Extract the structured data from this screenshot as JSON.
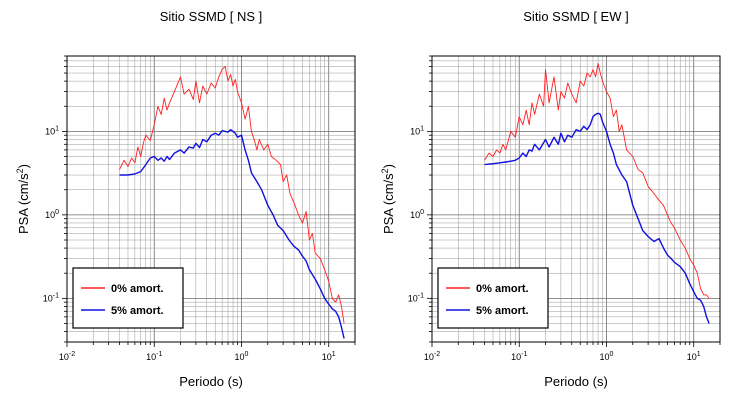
{
  "chart_data": [
    {
      "type": "line",
      "title": "Sitio SSMD [ NS ]",
      "xlabel": "Periodo (s)",
      "ylabel_main": "PSA (cm/s",
      "ylabel_sup": "2",
      "ylabel_close": ")",
      "xscale": "log",
      "yscale": "log",
      "xlim": [
        0.01,
        20
      ],
      "ylim": [
        0.03,
        80
      ],
      "grid": true,
      "legend_position": "bottom-left",
      "x_ticks": [
        {
          "value": 0.01,
          "base": "10",
          "exp": "-2"
        },
        {
          "value": 0.1,
          "base": "10",
          "exp": "-1"
        },
        {
          "value": 1,
          "base": "10",
          "exp": "0"
        },
        {
          "value": 10,
          "base": "10",
          "exp": "1"
        }
      ],
      "y_ticks": [
        {
          "value": 0.1,
          "base": "10",
          "exp": "-1"
        },
        {
          "value": 1,
          "base": "10",
          "exp": "0"
        },
        {
          "value": 10,
          "base": "10",
          "exp": "1"
        }
      ],
      "series": [
        {
          "name": "0% amort.",
          "color": "#ff2020",
          "x": [
            0.04,
            0.045,
            0.05,
            0.055,
            0.06,
            0.065,
            0.07,
            0.075,
            0.08,
            0.09,
            0.1,
            0.11,
            0.12,
            0.13,
            0.14,
            0.15,
            0.17,
            0.2,
            0.22,
            0.25,
            0.28,
            0.3,
            0.33,
            0.36,
            0.4,
            0.45,
            0.5,
            0.55,
            0.6,
            0.65,
            0.7,
            0.75,
            0.8,
            0.85,
            0.9,
            1.0,
            1.1,
            1.2,
            1.3,
            1.4,
            1.5,
            1.6,
            1.8,
            2.0,
            2.2,
            2.5,
            2.8,
            3.0,
            3.3,
            3.6,
            4.0,
            4.5,
            5.0,
            5.5,
            6.0,
            6.5,
            7.0,
            8.0,
            9.0,
            10,
            11,
            12,
            13,
            14,
            15
          ],
          "y": [
            3.5,
            4.5,
            3.8,
            4.8,
            4.2,
            6.5,
            5.0,
            7.2,
            9.0,
            7.8,
            12,
            20,
            16,
            25,
            18,
            22,
            30,
            45,
            28,
            32,
            24,
            40,
            22,
            35,
            28,
            38,
            33,
            45,
            55,
            60,
            40,
            48,
            35,
            42,
            30,
            22,
            14,
            20,
            10,
            8,
            6,
            8,
            6,
            7,
            5,
            4.5,
            4,
            2.5,
            3,
            1.8,
            1.4,
            1.0,
            0.8,
            1.1,
            0.5,
            0.6,
            0.35,
            0.3,
            0.22,
            0.16,
            0.1,
            0.09,
            0.11,
            0.08,
            0.05
          ]
        },
        {
          "name": "5% amort.",
          "color": "#1010e0",
          "x": [
            0.04,
            0.05,
            0.06,
            0.07,
            0.08,
            0.09,
            0.1,
            0.11,
            0.12,
            0.13,
            0.14,
            0.15,
            0.17,
            0.2,
            0.22,
            0.25,
            0.28,
            0.3,
            0.33,
            0.36,
            0.4,
            0.45,
            0.5,
            0.55,
            0.6,
            0.65,
            0.7,
            0.75,
            0.8,
            0.85,
            0.9,
            1.0,
            1.1,
            1.2,
            1.3,
            1.5,
            1.7,
            2.0,
            2.3,
            2.6,
            3.0,
            3.5,
            4.0,
            4.5,
            5.0,
            5.5,
            6.0,
            7.0,
            8.0,
            9.0,
            10,
            11,
            12,
            13,
            14,
            15
          ],
          "y": [
            3.0,
            3.0,
            3.1,
            3.3,
            4.0,
            4.8,
            5.0,
            4.5,
            4.8,
            4.4,
            5.0,
            4.6,
            5.5,
            6.0,
            5.5,
            6.5,
            6.3,
            7.2,
            6.4,
            8.0,
            7.5,
            9.0,
            9.5,
            9.0,
            10.2,
            10.0,
            9.8,
            10.5,
            10.0,
            9.5,
            8.5,
            9.0,
            6.0,
            4.5,
            3.2,
            2.5,
            2.0,
            1.3,
            1.0,
            0.75,
            0.65,
            0.5,
            0.42,
            0.38,
            0.32,
            0.28,
            0.22,
            0.17,
            0.13,
            0.1,
            0.085,
            0.075,
            0.07,
            0.06,
            0.045,
            0.033
          ]
        }
      ]
    },
    {
      "type": "line",
      "title": "Sitio SSMD [ EW ]",
      "xlabel": "Periodo (s)",
      "ylabel_main": "PSA (cm/s",
      "ylabel_sup": "2",
      "ylabel_close": ")",
      "xscale": "log",
      "yscale": "log",
      "xlim": [
        0.01,
        20
      ],
      "ylim": [
        0.03,
        80
      ],
      "grid": true,
      "legend_position": "bottom-left",
      "x_ticks": [
        {
          "value": 0.01,
          "base": "10",
          "exp": "-2"
        },
        {
          "value": 0.1,
          "base": "10",
          "exp": "-1"
        },
        {
          "value": 1,
          "base": "10",
          "exp": "0"
        },
        {
          "value": 10,
          "base": "10",
          "exp": "1"
        }
      ],
      "y_ticks": [
        {
          "value": 0.1,
          "base": "10",
          "exp": "-1"
        },
        {
          "value": 1,
          "base": "10",
          "exp": "0"
        },
        {
          "value": 10,
          "base": "10",
          "exp": "1"
        }
      ],
      "series": [
        {
          "name": "0% amort.",
          "color": "#ff2020",
          "x": [
            0.04,
            0.045,
            0.05,
            0.055,
            0.06,
            0.065,
            0.07,
            0.08,
            0.09,
            0.1,
            0.11,
            0.12,
            0.13,
            0.14,
            0.15,
            0.17,
            0.19,
            0.2,
            0.22,
            0.25,
            0.28,
            0.3,
            0.33,
            0.36,
            0.4,
            0.45,
            0.5,
            0.55,
            0.6,
            0.65,
            0.7,
            0.75,
            0.8,
            0.85,
            0.9,
            1.0,
            1.1,
            1.2,
            1.3,
            1.4,
            1.5,
            1.7,
            2.0,
            2.3,
            2.6,
            3.0,
            3.5,
            4.0,
            4.5,
            5.0,
            5.5,
            6.0,
            7.0,
            8.0,
            9.0,
            10,
            11,
            12,
            13,
            14,
            15
          ],
          "y": [
            4.5,
            5.5,
            5.0,
            6.0,
            5.5,
            7.0,
            6.0,
            10,
            8.5,
            15,
            12,
            18,
            12,
            22,
            16,
            28,
            20,
            55,
            22,
            45,
            18,
            30,
            25,
            38,
            28,
            22,
            40,
            35,
            50,
            45,
            55,
            45,
            65,
            50,
            40,
            30,
            25,
            15,
            18,
            10,
            12,
            6,
            5,
            3.5,
            3.2,
            2.2,
            1.8,
            1.5,
            1.3,
            1.0,
            0.8,
            0.7,
            0.5,
            0.4,
            0.3,
            0.25,
            0.2,
            0.13,
            0.11,
            0.11,
            0.1
          ]
        },
        {
          "name": "5% amort.",
          "color": "#1010e0",
          "x": [
            0.04,
            0.05,
            0.06,
            0.07,
            0.08,
            0.09,
            0.1,
            0.11,
            0.12,
            0.13,
            0.14,
            0.15,
            0.17,
            0.2,
            0.22,
            0.25,
            0.28,
            0.3,
            0.33,
            0.36,
            0.4,
            0.45,
            0.5,
            0.55,
            0.6,
            0.65,
            0.7,
            0.75,
            0.8,
            0.85,
            0.9,
            1.0,
            1.1,
            1.2,
            1.3,
            1.5,
            1.7,
            2.0,
            2.3,
            2.6,
            3.0,
            3.5,
            4.0,
            4.5,
            5.0,
            5.5,
            6.0,
            7.0,
            8.0,
            9.0,
            10,
            11,
            12,
            13,
            14,
            15
          ],
          "y": [
            4.0,
            4.1,
            4.2,
            4.3,
            4.4,
            4.5,
            4.8,
            5.5,
            5.0,
            6.0,
            5.8,
            7.0,
            6.0,
            8.0,
            6.5,
            8.5,
            7.0,
            9.5,
            7.5,
            9.0,
            8.5,
            10.5,
            10.0,
            11.5,
            10.5,
            12.0,
            15.0,
            16.0,
            16.5,
            16.0,
            13.0,
            10.0,
            7.0,
            5.5,
            4.0,
            3.0,
            2.5,
            1.3,
            0.9,
            0.65,
            0.55,
            0.48,
            0.52,
            0.4,
            0.33,
            0.3,
            0.27,
            0.24,
            0.2,
            0.15,
            0.12,
            0.1,
            0.095,
            0.08,
            0.06,
            0.05
          ]
        }
      ]
    }
  ]
}
